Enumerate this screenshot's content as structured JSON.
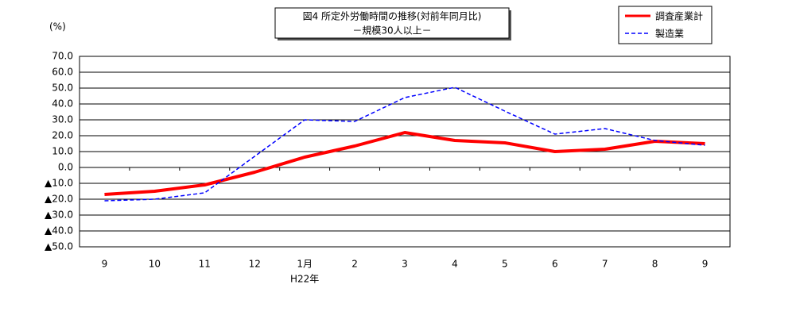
{
  "chart_data": {
    "type": "line",
    "title": "図4 所定外労働時間の推移(対前年同月比)",
    "subtitle": "－規模30人以上－",
    "y_label": "(%)",
    "x_sublabel": "H22年",
    "categories": [
      "9",
      "10",
      "11",
      "12",
      "1月",
      "2",
      "3",
      "4",
      "5",
      "6",
      "7",
      "8",
      "9"
    ],
    "series": [
      {
        "name": "調査産業計",
        "color": "#ff0000",
        "dash": false,
        "width": 4,
        "values": [
          -17,
          -15,
          -11,
          -3,
          6.5,
          13.5,
          22,
          17,
          15.5,
          10,
          11.5,
          16.5,
          15
        ]
      },
      {
        "name": "製造業",
        "color": "#0000ff",
        "dash": true,
        "width": 1.5,
        "values": [
          -21,
          -20,
          -16,
          7,
          30,
          29,
          44,
          50.5,
          35.5,
          21,
          24.5,
          17,
          14
        ]
      }
    ],
    "ylim": [
      -50,
      70
    ],
    "yticks": [
      {
        "value": 70,
        "label": "70.0"
      },
      {
        "value": 60,
        "label": "60.0"
      },
      {
        "value": 50,
        "label": "50.0"
      },
      {
        "value": 40,
        "label": "40.0"
      },
      {
        "value": 30,
        "label": "30.0"
      },
      {
        "value": 20,
        "label": "20.0"
      },
      {
        "value": 10,
        "label": "10.0"
      },
      {
        "value": 0,
        "label": "0.0"
      },
      {
        "value": -10,
        "label": "▲10.0"
      },
      {
        "value": -20,
        "label": "▲20.0"
      },
      {
        "value": -30,
        "label": "▲30.0"
      },
      {
        "value": -40,
        "label": "▲40.0"
      },
      {
        "value": -50,
        "label": "▲50.0"
      }
    ],
    "grid": true
  }
}
